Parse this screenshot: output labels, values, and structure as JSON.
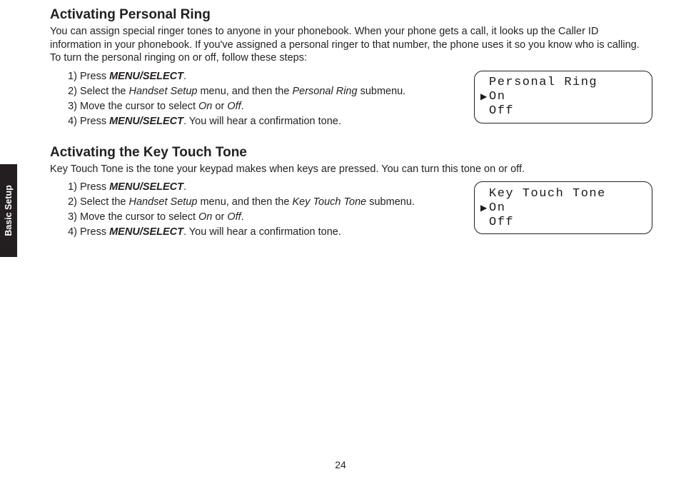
{
  "sideTab": "Basic Setup",
  "pageNumber": "24",
  "section1": {
    "heading": "Activating Personal Ring",
    "intro": "You can assign special ringer tones to anyone in your phonebook. When your phone gets a call, it looks up the Caller ID information in your phonebook. If you've assigned a personal ringer to that number, the phone uses it so you know who is calling. To turn the personal ringing on or off, follow these steps:",
    "step1_num": "1)",
    "step1_a": "Press ",
    "step1_b": "MENU/SELECT",
    "step1_c": ".",
    "step2_num": "2)",
    "step2_a": "Select the ",
    "step2_b": "Handset Setup",
    "step2_c": " menu, and then the ",
    "step2_d": "Personal Ring",
    "step2_e": " submenu.",
    "step3_num": "3)",
    "step3_a": "Move the cursor to select ",
    "step3_b": "On",
    "step3_c": " or ",
    "step3_d": "Off",
    "step3_e": ".",
    "step4_num": "4)",
    "step4_a": "Press ",
    "step4_b": "MENU/SELECT",
    "step4_c": ". You will hear a confirmation tone.",
    "lcd": {
      "title": "Personal Ring",
      "opt1": "On",
      "opt2": "Off",
      "arrow": "▶"
    }
  },
  "section2": {
    "heading": "Activating the Key Touch Tone",
    "intro": "Key Touch Tone is the tone your keypad makes when keys are pressed. You can turn this tone on or off.",
    "step1_num": "1)",
    "step1_a": "Press ",
    "step1_b": "MENU/SELECT",
    "step1_c": ".",
    "step2_num": "2)",
    "step2_a": "Select the ",
    "step2_b": "Handset Setup",
    "step2_c": " menu, and then the ",
    "step2_d": "Key Touch Tone",
    "step2_e": " submenu.",
    "step3_num": "3)",
    "step3_a": "Move the cursor to select ",
    "step3_b": "On",
    "step3_c": " or ",
    "step3_d": "Off",
    "step3_e": ".",
    "step4_num": "4)",
    "step4_a": "Press ",
    "step4_b": "MENU/SELECT",
    "step4_c": ". You will hear a confirmation tone.",
    "lcd": {
      "title": "Key Touch Tone",
      "opt1": "On",
      "opt2": "Off",
      "arrow": "▶"
    }
  }
}
